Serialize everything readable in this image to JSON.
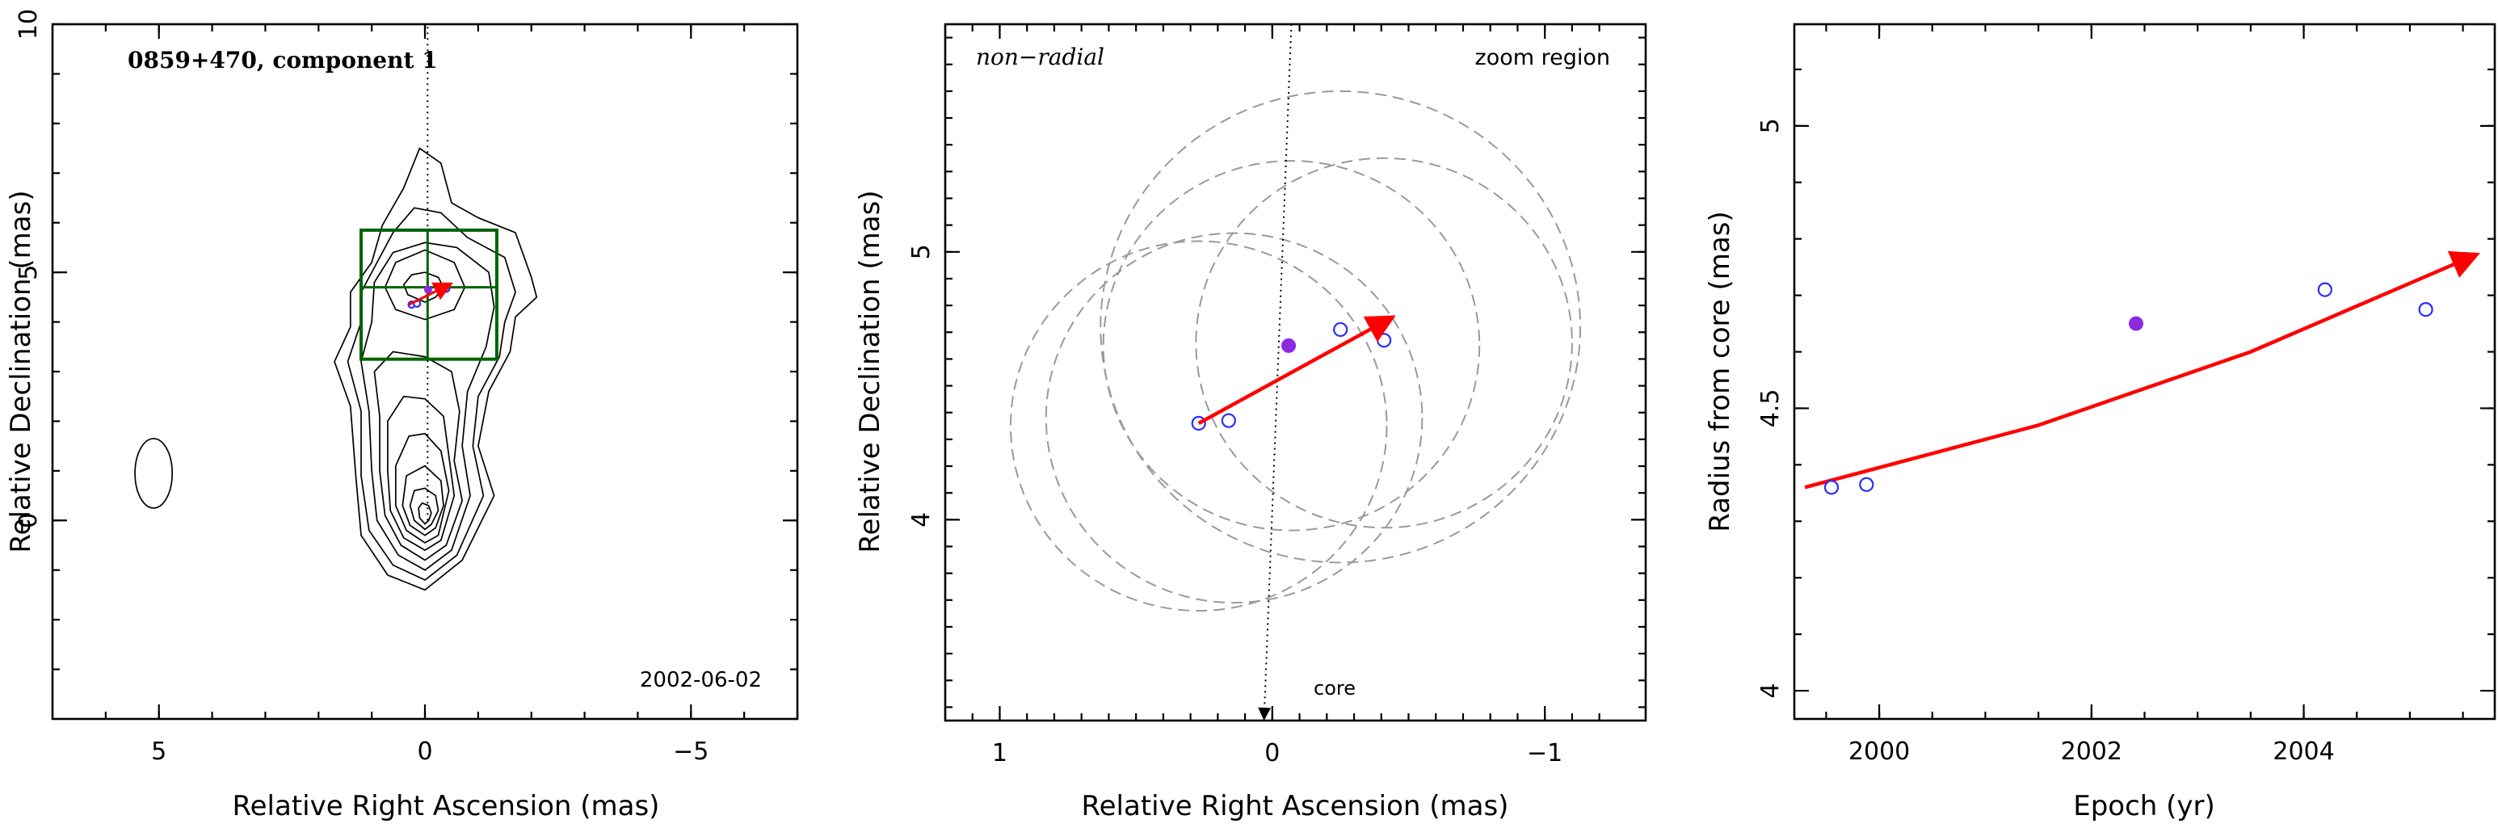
{
  "colors": {
    "arrow": "#ff0000",
    "open_point": "#2b2bff",
    "filled_point": "#8a2be2",
    "box": "#006400",
    "circles": "#9a9a9a",
    "contours": "#000000"
  },
  "chart_data": [
    {
      "type": "scatter",
      "title": "0859+470, component 1",
      "date": "2002-06-02",
      "xlabel": "Relative Right Ascension (mas)",
      "ylabel": "Relative Declination (mas)",
      "xlim": [
        7,
        -7
      ],
      "ylim": [
        -4,
        10
      ],
      "xticks": [
        {
          "v": 5,
          "label": "5"
        },
        {
          "v": 0,
          "label": "0"
        },
        {
          "v": -5,
          "label": "−5"
        }
      ],
      "yticks": [
        {
          "v": 0,
          "label": "0"
        },
        {
          "v": 5,
          "label": "5"
        },
        {
          "v": 10,
          "label": "10"
        }
      ],
      "contours": [
        [
          [
            0.0,
            -1.4
          ],
          [
            0.7,
            -1.1
          ],
          [
            1.2,
            -0.3
          ],
          [
            1.3,
            0.9
          ],
          [
            1.4,
            2.3
          ],
          [
            1.7,
            3.2
          ],
          [
            1.4,
            3.9
          ],
          [
            1.4,
            4.6
          ],
          [
            1.0,
            5.2
          ],
          [
            0.8,
            5.95
          ],
          [
            0.4,
            6.7
          ],
          [
            0.1,
            7.5
          ],
          [
            -0.3,
            7.2
          ],
          [
            -0.5,
            6.4
          ],
          [
            -1.0,
            6.1
          ],
          [
            -1.7,
            5.8
          ],
          [
            -2.0,
            4.9
          ],
          [
            -2.1,
            4.5
          ],
          [
            -1.7,
            4.1
          ],
          [
            -1.6,
            3.4
          ],
          [
            -1.2,
            2.6
          ],
          [
            -1.0,
            1.5
          ],
          [
            -1.3,
            0.5
          ],
          [
            -0.7,
            -0.8
          ]
        ],
        [
          [
            0.0,
            -1.2
          ],
          [
            0.6,
            -0.9
          ],
          [
            1.05,
            -0.2
          ],
          [
            1.2,
            0.9
          ],
          [
            1.2,
            2.2
          ],
          [
            1.45,
            3.2
          ],
          [
            1.2,
            4.0
          ],
          [
            1.2,
            4.6
          ],
          [
            0.9,
            5.2
          ],
          [
            0.6,
            5.8
          ],
          [
            0.2,
            6.3
          ],
          [
            -0.3,
            6.2
          ],
          [
            -0.8,
            5.7
          ],
          [
            -1.5,
            5.3
          ],
          [
            -1.7,
            4.6
          ],
          [
            -1.5,
            4.0
          ],
          [
            -1.4,
            3.3
          ],
          [
            -1.0,
            2.5
          ],
          [
            -0.9,
            1.5
          ],
          [
            -1.1,
            0.5
          ],
          [
            -0.6,
            -0.7
          ]
        ],
        [
          [
            0.0,
            -1.0
          ],
          [
            0.5,
            -0.7
          ],
          [
            0.9,
            0.0
          ],
          [
            1.0,
            1.0
          ],
          [
            1.05,
            2.2
          ],
          [
            1.2,
            3.2
          ],
          [
            1.0,
            4.0
          ],
          [
            0.95,
            4.8
          ],
          [
            0.6,
            5.4
          ],
          [
            0.0,
            5.6
          ],
          [
            -0.6,
            5.5
          ],
          [
            -1.2,
            5.0
          ],
          [
            -1.3,
            4.3
          ],
          [
            -1.15,
            3.5
          ],
          [
            -0.8,
            2.6
          ],
          [
            -0.7,
            1.5
          ],
          [
            -0.85,
            0.5
          ],
          [
            -0.5,
            -0.6
          ]
        ],
        [
          [
            0.0,
            -0.8
          ],
          [
            0.45,
            -0.5
          ],
          [
            0.75,
            0.1
          ],
          [
            0.85,
            1.0
          ],
          [
            0.85,
            2.1
          ],
          [
            0.95,
            3.0
          ],
          [
            0.6,
            3.4
          ],
          [
            0.0,
            3.3
          ],
          [
            -0.5,
            3.0
          ],
          [
            -0.65,
            2.2
          ],
          [
            -0.55,
            1.2
          ],
          [
            -0.7,
            0.4
          ],
          [
            -0.4,
            -0.5
          ]
        ],
        [
          [
            0.0,
            -0.6
          ],
          [
            0.4,
            -0.35
          ],
          [
            0.65,
            0.2
          ],
          [
            0.7,
            1.0
          ],
          [
            0.7,
            2.0
          ],
          [
            0.4,
            2.5
          ],
          [
            0.0,
            2.45
          ],
          [
            -0.35,
            2.1
          ],
          [
            -0.45,
            1.3
          ],
          [
            -0.55,
            0.5
          ],
          [
            -0.3,
            -0.4
          ]
        ],
        [
          [
            0.0,
            -0.45
          ],
          [
            0.35,
            -0.2
          ],
          [
            0.55,
            0.3
          ],
          [
            0.55,
            1.1
          ],
          [
            0.3,
            1.7
          ],
          [
            0.0,
            1.75
          ],
          [
            -0.3,
            1.4
          ],
          [
            -0.45,
            0.6
          ],
          [
            -0.25,
            -0.3
          ]
        ],
        [
          [
            0.0,
            -0.3
          ],
          [
            0.28,
            -0.1
          ],
          [
            0.42,
            0.3
          ],
          [
            0.35,
            0.9
          ],
          [
            0.0,
            1.1
          ],
          [
            -0.3,
            0.8
          ],
          [
            -0.35,
            0.3
          ],
          [
            -0.2,
            -0.15
          ]
        ],
        [
          [
            0.0,
            -0.18
          ],
          [
            0.2,
            0.0
          ],
          [
            0.28,
            0.3
          ],
          [
            0.2,
            0.6
          ],
          [
            0.0,
            0.65
          ],
          [
            -0.2,
            0.5
          ],
          [
            -0.25,
            0.2
          ],
          [
            -0.12,
            -0.08
          ]
        ],
        [
          [
            0.0,
            -0.07
          ],
          [
            0.1,
            0.05
          ],
          [
            0.12,
            0.25
          ],
          [
            0.05,
            0.35
          ],
          [
            -0.07,
            0.3
          ],
          [
            -0.12,
            0.15
          ],
          [
            -0.07,
            0.0
          ]
        ],
        [
          [
            0.0,
            4.05
          ],
          [
            0.55,
            4.25
          ],
          [
            0.75,
            4.7
          ],
          [
            0.55,
            5.2
          ],
          [
            0.0,
            5.45
          ],
          [
            -0.55,
            5.2
          ],
          [
            -0.75,
            4.7
          ],
          [
            -0.55,
            4.25
          ]
        ],
        [
          [
            0.0,
            4.4
          ],
          [
            0.32,
            4.55
          ],
          [
            0.4,
            4.75
          ],
          [
            0.25,
            4.95
          ],
          [
            0.0,
            5.0
          ],
          [
            -0.25,
            4.9
          ],
          [
            -0.35,
            4.7
          ],
          [
            -0.2,
            4.5
          ]
        ]
      ],
      "beam": {
        "x": 5.1,
        "y": 0.95,
        "major": 0.7,
        "minor": 0.35
      },
      "box": {
        "x1": 1.2,
        "x2": -1.35,
        "y1": 3.25,
        "y2": 5.85
      },
      "box_cross": {
        "x": -0.05,
        "y": 4.7
      },
      "guide_line": {
        "x": -0.05,
        "y_from": 0,
        "y_to": 10
      },
      "points_open": [
        [
          0.25,
          4.35
        ],
        [
          0.15,
          4.37
        ],
        [
          -0.25,
          4.71
        ],
        [
          -0.4,
          4.67
        ]
      ],
      "points_filled": [
        [
          -0.06,
          4.65
        ]
      ],
      "arrow": {
        "from": [
          0.3,
          4.35
        ],
        "to": [
          -0.45,
          4.75
        ]
      }
    },
    {
      "type": "scatter",
      "annotation_left": "non−radial",
      "annotation_right": "zoom region",
      "core_label": "core",
      "xlabel": "Relative Right Ascension (mas)",
      "ylabel": "Relative Declination (mas)",
      "xlim": [
        1.2,
        -1.37
      ],
      "ylim": [
        3.25,
        5.85
      ],
      "xticks": [
        {
          "v": 1,
          "label": "1"
        },
        {
          "v": 0,
          "label": "0"
        },
        {
          "v": -1,
          "label": "−1"
        }
      ],
      "yticks": [
        {
          "v": 4,
          "label": "4"
        },
        {
          "v": 5,
          "label": "5"
        }
      ],
      "guide_line": {
        "x_from": -0.07,
        "y_from": 5.85,
        "x_to": 0.03,
        "y_to": 3.25
      },
      "circles": [
        {
          "x": 0.27,
          "y": 4.35,
          "r": 0.69
        },
        {
          "x": 0.14,
          "y": 4.38,
          "r": 0.69
        },
        {
          "x": -0.07,
          "y": 4.65,
          "r": 0.69
        },
        {
          "x": -0.25,
          "y": 4.72,
          "r": 0.88
        },
        {
          "x": -0.41,
          "y": 4.66,
          "r": 0.69
        }
      ],
      "points_open": [
        [
          0.27,
          4.36
        ],
        [
          0.16,
          4.37
        ],
        [
          -0.25,
          4.71
        ],
        [
          -0.41,
          4.67
        ]
      ],
      "points_filled": [
        [
          -0.06,
          4.65
        ]
      ],
      "arrow": {
        "from": [
          0.27,
          4.36
        ],
        "to": [
          -0.43,
          4.75
        ]
      }
    },
    {
      "type": "scatter",
      "xlabel": "Epoch (yr)",
      "ylabel": "Radius from core (mas)",
      "xlim": [
        1999.2,
        2005.8
      ],
      "ylim": [
        3.95,
        5.18
      ],
      "xticks": [
        {
          "v": 2000,
          "label": "2000"
        },
        {
          "v": 2002,
          "label": "2002"
        },
        {
          "v": 2004,
          "label": "2004"
        }
      ],
      "yticks": [
        {
          "v": 4,
          "label": "4"
        },
        {
          "v": 4.5,
          "label": "4.5"
        },
        {
          "v": 5,
          "label": "5"
        }
      ],
      "points_open": [
        [
          1999.55,
          4.36
        ],
        [
          1999.88,
          4.365
        ],
        [
          2004.2,
          4.71
        ],
        [
          2005.15,
          4.675
        ]
      ],
      "points_filled": [
        [
          2002.42,
          4.65
        ]
      ],
      "trend_line": [
        [
          1999.3,
          4.36
        ],
        [
          2001.5,
          4.47
        ],
        [
          2003.5,
          4.6
        ],
        [
          2005.6,
          4.77
        ]
      ]
    }
  ]
}
